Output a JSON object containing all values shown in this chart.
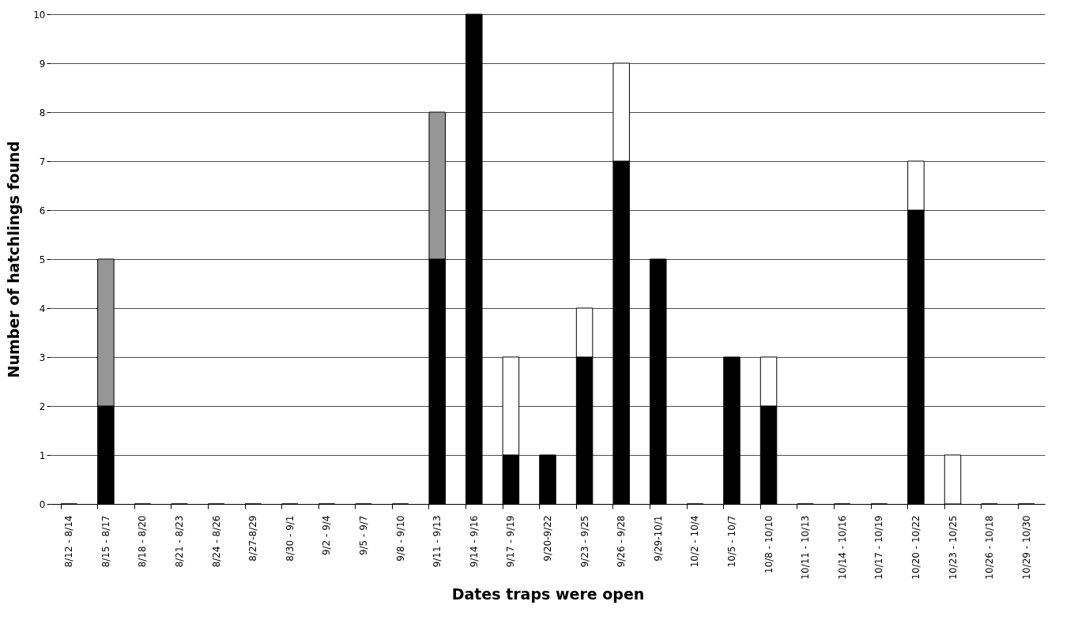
{
  "chart_data": {
    "type": "bar",
    "stacked": true,
    "xlabel": "Dates traps were open",
    "ylabel": "Number of hatchlings found",
    "categories": [
      "8/12 - 8/14",
      "8/15 - 8/17",
      "8/18 - 8/20",
      "8/21 - 8/23",
      "8/24 - 8/26",
      "8/27-8/29",
      "8/30 - 9/1",
      "9/2 - 9/4",
      "9/5 - 9/7",
      "9/8 - 9/10",
      "9/11 - 9/13",
      "9/14 - 9/16",
      "9/17 - 9/19",
      "9/20-9/22",
      "9/23 - 9/25",
      "9/26 - 9/28",
      "9/29-10/1",
      "10/2 - 10/4",
      "10/5 - 10/7",
      "10/8 - 10/10",
      "10/11 - 10/13",
      "10/14 - 10/16",
      "10/17 - 10/19",
      "10/20 - 10/22",
      "10/23 - 10/25",
      "10/26 - 10/18",
      "10/29 - 10/30"
    ],
    "series": [
      {
        "color": "#000000",
        "values": [
          0,
          2,
          0,
          0,
          0,
          0,
          0,
          0,
          0,
          0,
          5,
          10,
          1,
          1,
          3,
          7,
          5,
          0,
          3,
          2,
          0,
          0,
          0,
          6,
          0,
          0,
          0
        ]
      },
      {
        "color": "#969696",
        "values": [
          null,
          3,
          null,
          null,
          null,
          null,
          null,
          null,
          null,
          null,
          3,
          null,
          null,
          null,
          null,
          null,
          null,
          null,
          null,
          null,
          null,
          null,
          null,
          null,
          null,
          null,
          null
        ]
      },
      {
        "color": "#ffffff",
        "values": [
          null,
          null,
          null,
          null,
          null,
          null,
          null,
          null,
          null,
          null,
          null,
          null,
          2,
          null,
          1,
          2,
          null,
          null,
          null,
          1,
          null,
          null,
          null,
          1,
          1,
          null,
          null
        ]
      }
    ],
    "ylim": [
      0,
      10
    ],
    "yticks": [
      0,
      1,
      2,
      3,
      4,
      5,
      6,
      7,
      8,
      9,
      10
    ],
    "grid": "y"
  }
}
